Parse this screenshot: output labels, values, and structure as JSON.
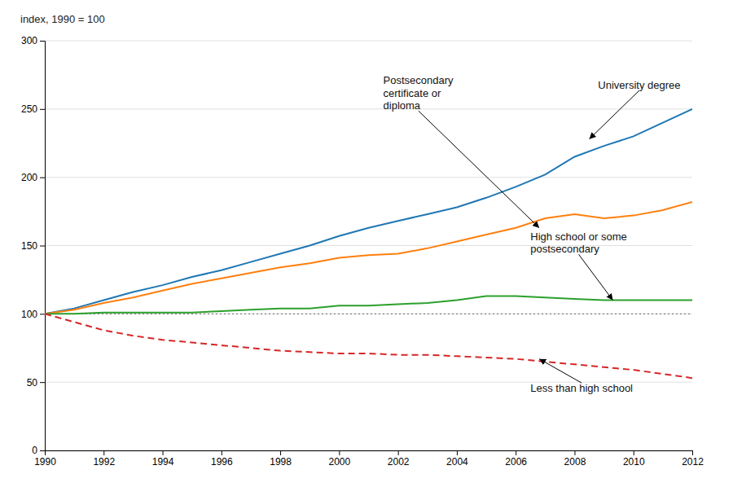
{
  "chart_data": {
    "type": "line",
    "ylabel": "index, 1990 = 100",
    "x": [
      1990,
      1991,
      1992,
      1993,
      1994,
      1995,
      1996,
      1997,
      1998,
      1999,
      2000,
      2001,
      2002,
      2003,
      2004,
      2005,
      2006,
      2007,
      2008,
      2009,
      2010,
      2011,
      2012
    ],
    "series": [
      {
        "line_style": "solid",
        "values": [
          100,
          104,
          110,
          116,
          121,
          127,
          132,
          138,
          144,
          150,
          157,
          163,
          168,
          173,
          178,
          185,
          193,
          202,
          215,
          223,
          230,
          240,
          250
        ]
      },
      {
        "line_style": "solid",
        "values": [
          100,
          103,
          108,
          112,
          117,
          122,
          126,
          130,
          134,
          137,
          141,
          143,
          144,
          148,
          153,
          158,
          163,
          170,
          173,
          170,
          172,
          176,
          182
        ]
      },
      {
        "line_style": "solid",
        "values": [
          100,
          100,
          101,
          101,
          101,
          101,
          102,
          103,
          104,
          104,
          106,
          106,
          107,
          108,
          110,
          113,
          113,
          112,
          111,
          110,
          110,
          110,
          110
        ]
      },
      {
        "line_style": "dashed",
        "values": [
          100,
          94,
          88,
          84,
          81,
          79,
          77,
          75,
          73,
          72,
          71,
          71,
          70,
          70,
          69,
          68,
          67,
          65,
          63,
          61,
          59,
          56,
          53
        ]
      }
    ],
    "reference_line": 100,
    "xlim": [
      1990,
      2012
    ],
    "xticks": [
      1990,
      1992,
      1994,
      1996,
      1998,
      2000,
      2002,
      2004,
      2006,
      2008,
      2010,
      2012
    ],
    "ylim": [
      0,
      300
    ],
    "yticks": [
      0,
      50,
      100,
      150,
      200,
      250,
      300
    ],
    "grid": true,
    "annotations": [
      {
        "text": "University degree",
        "xy": [
          2008.5,
          228
        ],
        "xytext": [
          2008.8,
          263
        ]
      },
      {
        "text": "Postsecondary\ncertificate or\ndiploma",
        "xy": [
          2006.8,
          163
        ],
        "xytext": [
          2001.5,
          248
        ]
      },
      {
        "text": "High school or some\npostsecondary",
        "xy": [
          2009.3,
          110
        ],
        "xytext": [
          2006.5,
          143
        ]
      },
      {
        "text": "Less than high school",
        "xy": [
          2006.8,
          67
        ],
        "xytext": [
          2006.5,
          50
        ]
      }
    ]
  }
}
